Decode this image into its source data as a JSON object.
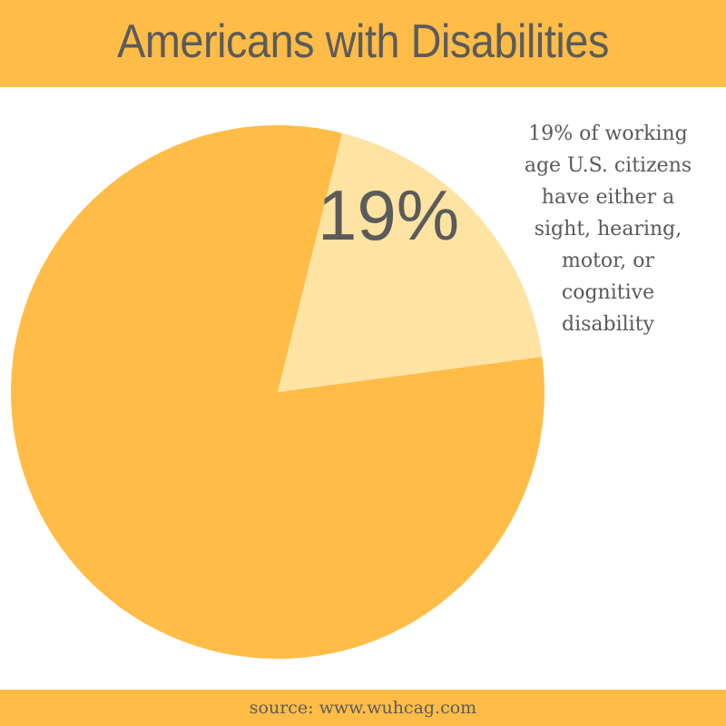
{
  "header": {
    "title": "Americans with Disabilities",
    "background_color": "#FFBC47"
  },
  "annotation": {
    "lines": [
      "19% of working",
      "age U.S. citizens",
      "have either a",
      "sight, hearing,",
      "motor, or",
      "cognitive",
      "disability"
    ]
  },
  "footer": {
    "source": "source: www.wuhcag.com",
    "background_color": "#FFBC47"
  },
  "chart_data": {
    "type": "pie",
    "slices": [
      {
        "value": 19,
        "label": "19%",
        "color": "#FFE3A2"
      },
      {
        "value": 81,
        "label": "",
        "color": "#FFBC47"
      }
    ],
    "legend": "none"
  }
}
